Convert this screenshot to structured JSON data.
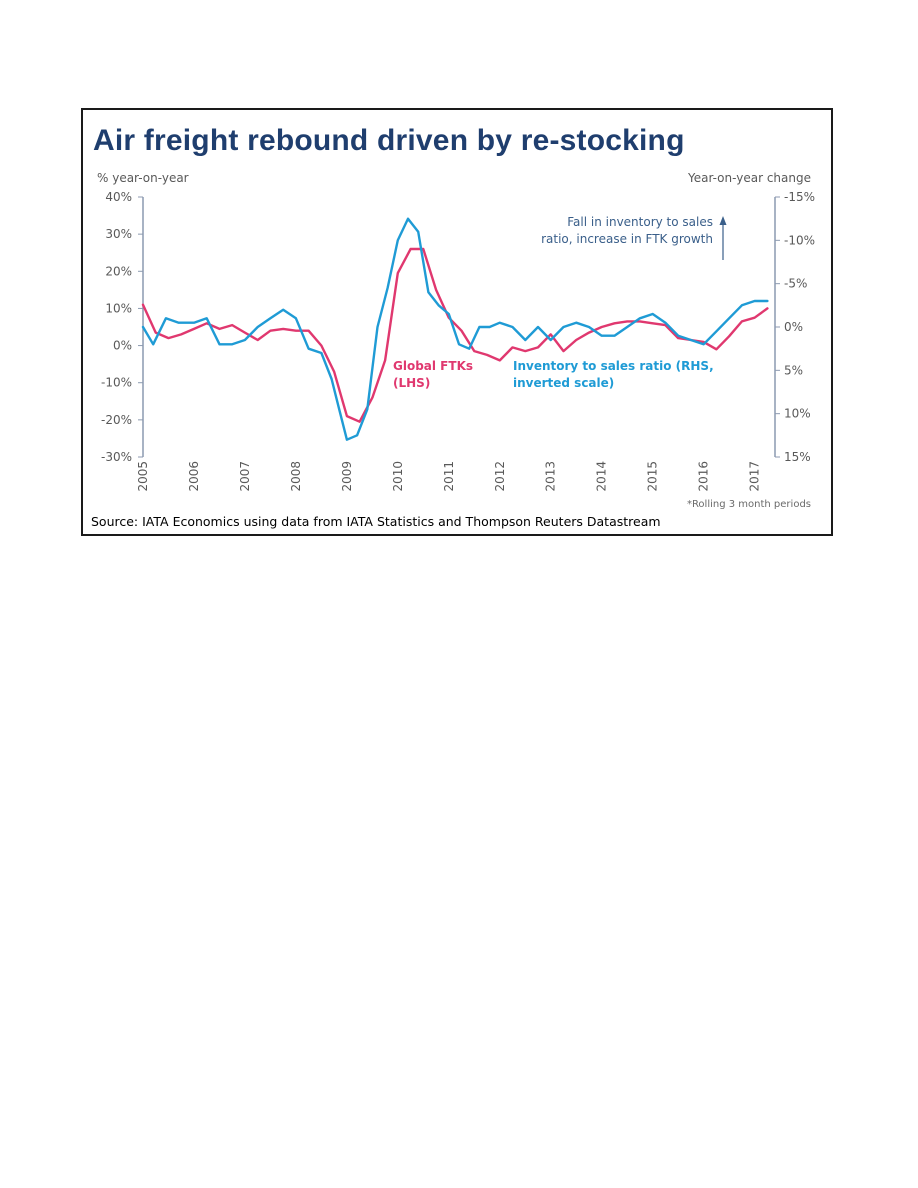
{
  "chart_data": {
    "type": "line",
    "title": "Air freight rebound driven by re-stocking",
    "y_left_label": "% year-on-year",
    "y_right_label": "Year-on-year change",
    "y_left_ticks": [
      "40%",
      "30%",
      "20%",
      "10%",
      "0%",
      "-10%",
      "-20%",
      "-30%"
    ],
    "y_right_ticks": [
      "-15%",
      "-10%",
      "-5%",
      "0%",
      "5%",
      "10%",
      "15%"
    ],
    "y_left_range": [
      -30,
      40
    ],
    "y_right_range": [
      -15,
      15
    ],
    "y_right_inverted": true,
    "x_ticks": [
      "2005",
      "2006",
      "2007",
      "2008",
      "2009",
      "2010",
      "2011",
      "2012",
      "2013",
      "2014",
      "2015",
      "2016",
      "2017"
    ],
    "x_range": [
      2005,
      2017.4
    ],
    "annotation": [
      "Fall in inventory to sales",
      "ratio, increase in FTK growth"
    ],
    "series": [
      {
        "name": "Global FTKs (LHS)",
        "label_lines": [
          "Global FTKs",
          "(LHS)"
        ],
        "color": "#e0386f",
        "axis": "left",
        "x": [
          2005.0,
          2005.25,
          2005.5,
          2005.75,
          2006.0,
          2006.25,
          2006.5,
          2006.75,
          2007.0,
          2007.25,
          2007.5,
          2007.75,
          2008.0,
          2008.25,
          2008.5,
          2008.75,
          2009.0,
          2009.25,
          2009.5,
          2009.75,
          2010.0,
          2010.25,
          2010.5,
          2010.75,
          2011.0,
          2011.25,
          2011.5,
          2011.75,
          2012.0,
          2012.25,
          2012.5,
          2012.75,
          2013.0,
          2013.25,
          2013.5,
          2013.75,
          2014.0,
          2014.25,
          2014.5,
          2014.75,
          2015.0,
          2015.25,
          2015.5,
          2015.75,
          2016.0,
          2016.25,
          2016.5,
          2016.75,
          2017.0,
          2017.25
        ],
        "y": [
          11,
          3.5,
          2,
          3,
          4.5,
          6,
          4.5,
          5.5,
          3.5,
          1.5,
          4,
          4.5,
          4,
          4,
          0,
          -7,
          -19,
          -20.5,
          -14,
          -4,
          19.5,
          26,
          26,
          15,
          7.5,
          4,
          -1.5,
          -2.5,
          -4,
          -0.5,
          -1.5,
          -0.5,
          3,
          -1.5,
          1.5,
          3.5,
          5,
          6,
          6.5,
          6.5,
          6,
          5.5,
          2,
          1.5,
          1,
          -1,
          2.5,
          6.5,
          7.5,
          10
        ]
      },
      {
        "name": "Inventory to sales ratio (RHS, inverted scale)",
        "label_lines": [
          "Inventory to sales ratio (RHS,",
          "inverted scale)"
        ],
        "color": "#1f9bd5",
        "axis": "right",
        "x": [
          2005.0,
          2005.2,
          2005.45,
          2005.7,
          2006.0,
          2006.25,
          2006.5,
          2006.75,
          2007.0,
          2007.25,
          2007.5,
          2007.75,
          2008.0,
          2008.25,
          2008.5,
          2008.7,
          2008.85,
          2009.0,
          2009.2,
          2009.4,
          2009.6,
          2009.8,
          2010.0,
          2010.2,
          2010.4,
          2010.6,
          2010.8,
          2011.0,
          2011.2,
          2011.4,
          2011.6,
          2011.8,
          2012.0,
          2012.25,
          2012.5,
          2012.75,
          2013.0,
          2013.25,
          2013.5,
          2013.75,
          2014.0,
          2014.25,
          2014.5,
          2014.75,
          2015.0,
          2015.25,
          2015.5,
          2015.75,
          2016.0,
          2016.25,
          2016.5,
          2016.75,
          2017.0,
          2017.25
        ],
        "y": [
          0,
          2,
          -1,
          -0.5,
          -0.5,
          -1,
          2,
          2,
          1.5,
          0,
          -1,
          -2,
          -1,
          2.5,
          3,
          6,
          9.5,
          13,
          12.5,
          9.5,
          0,
          -4.5,
          -10,
          -12.5,
          -11,
          -4,
          -2.5,
          -1.5,
          2,
          2.5,
          0,
          0,
          -0.5,
          0,
          1.5,
          0,
          1.5,
          0,
          -0.5,
          0,
          1,
          1,
          0,
          -1,
          -1.5,
          -0.5,
          1,
          1.5,
          2,
          0.5,
          -1,
          -2.5,
          -3,
          -3
        ]
      }
    ]
  },
  "source": "Source: IATA Economics using data from IATA Statistics and Thompson Reuters Datastream",
  "footnote": "*Rolling 3 month periods"
}
